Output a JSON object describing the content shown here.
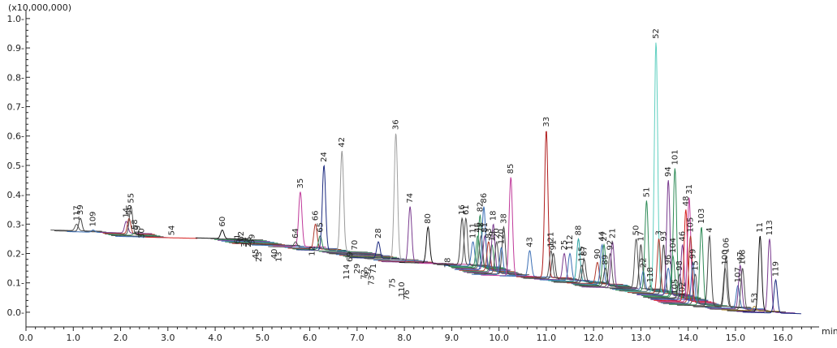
{
  "chart_data": {
    "type": "line",
    "title": "",
    "xlabel": "",
    "ylabel": "",
    "x_unit": "min",
    "y_multiplier": "(x10,000,000)",
    "xlim": [
      0.0,
      16.7
    ],
    "ylim": [
      -0.05,
      1.03
    ],
    "x_ticks": [
      0.0,
      1.0,
      2.0,
      3.0,
      4.0,
      5.0,
      6.0,
      7.0,
      8.0,
      9.0,
      10.0,
      11.0,
      12.0,
      13.0,
      14.0,
      15.0,
      16.0
    ],
    "x_tick_labels": [
      "0.0",
      "1.0",
      "2.0",
      "3.0",
      "4.0",
      "5.0",
      "6.0",
      "7.0",
      "8.0",
      "9.0",
      "10.0",
      "11.0",
      "12.0",
      "13.0",
      "14.0",
      "15.0",
      "16.0"
    ],
    "y_ticks": [
      0.0,
      0.1,
      0.2,
      0.3,
      0.4,
      0.5,
      0.6,
      0.7,
      0.8,
      0.9,
      1.0
    ],
    "y_tick_labels": [
      "0.0-",
      "0.1-",
      "0.2-",
      "0.3-",
      "0.4-",
      "0.5-",
      "0.6-",
      "0.7-",
      "0.8-",
      "0.9-",
      "1.0-"
    ],
    "grid": false,
    "legend": "none",
    "peaks": [
      {
        "label": "117",
        "x": 1.07,
        "y": 0.3,
        "color": "#555555"
      },
      {
        "label": "39",
        "x": 1.15,
        "y": 0.32,
        "color": "#444444"
      },
      {
        "label": "109",
        "x": 1.42,
        "y": 0.28,
        "color": "#3b6fb5"
      },
      {
        "label": "14",
        "x": 2.12,
        "y": 0.31,
        "color": "#7a3b8f"
      },
      {
        "label": "56",
        "x": 2.18,
        "y": 0.32,
        "color": "#b03a2e"
      },
      {
        "label": "55",
        "x": 2.22,
        "y": 0.36,
        "color": "#555555"
      },
      {
        "label": "58",
        "x": 2.3,
        "y": 0.27,
        "color": "#2e8b57"
      },
      {
        "label": "49",
        "x": 2.36,
        "y": 0.25,
        "color": "#444444"
      },
      {
        "label": "30",
        "x": 2.45,
        "y": 0.24,
        "color": "#3b6fb5"
      },
      {
        "label": "54",
        "x": 3.08,
        "y": 0.25,
        "color": "#d62020"
      },
      {
        "label": "60",
        "x": 4.15,
        "y": 0.28,
        "color": "#111111"
      },
      {
        "label": "61",
        "x": 4.47,
        "y": 0.22,
        "color": "#444444"
      },
      {
        "label": "62",
        "x": 4.55,
        "y": 0.23,
        "color": "#2e8b57"
      },
      {
        "label": "34",
        "x": 4.62,
        "y": 0.21,
        "color": "#7a3b8f"
      },
      {
        "label": "26",
        "x": 4.7,
        "y": 0.21,
        "color": "#3b6fb5"
      },
      {
        "label": "59",
        "x": 4.78,
        "y": 0.22,
        "color": "#2e8b57"
      },
      {
        "label": "45",
        "x": 4.86,
        "y": 0.17,
        "color": "#555555"
      },
      {
        "label": "23",
        "x": 4.93,
        "y": 0.16,
        "color": "#b03a2e"
      },
      {
        "label": "40",
        "x": 5.25,
        "y": 0.17,
        "color": "#444444"
      },
      {
        "label": "13",
        "x": 5.35,
        "y": 0.16,
        "color": "#3b6fb5"
      },
      {
        "label": "35",
        "x": 5.8,
        "y": 0.41,
        "color": "#c0399a"
      },
      {
        "label": "64",
        "x": 5.7,
        "y": 0.24,
        "color": "#555555"
      },
      {
        "label": "12",
        "x": 6.05,
        "y": 0.18,
        "color": "#3b6fb5"
      },
      {
        "label": "66",
        "x": 6.12,
        "y": 0.3,
        "color": "#b03a2e"
      },
      {
        "label": "65",
        "x": 6.22,
        "y": 0.26,
        "color": "#2e8b57"
      },
      {
        "label": "24",
        "x": 6.3,
        "y": 0.5,
        "color": "#1c2a80"
      },
      {
        "label": "42",
        "x": 6.68,
        "y": 0.55,
        "color": "#999999"
      },
      {
        "label": "114",
        "x": 6.78,
        "y": 0.1,
        "color": "#2e8b57"
      },
      {
        "label": "69",
        "x": 6.85,
        "y": 0.16,
        "color": "#7a3b8f"
      },
      {
        "label": "70",
        "x": 6.95,
        "y": 0.2,
        "color": "#555555"
      },
      {
        "label": "29",
        "x": 7.0,
        "y": 0.12,
        "color": "#444444"
      },
      {
        "label": "72",
        "x": 7.15,
        "y": 0.1,
        "color": "#3b6fb5"
      },
      {
        "label": "92",
        "x": 7.22,
        "y": 0.11,
        "color": "#b03a2e"
      },
      {
        "label": "73",
        "x": 7.3,
        "y": 0.08,
        "color": "#2e8b57"
      },
      {
        "label": "71",
        "x": 7.35,
        "y": 0.12,
        "color": "#444444"
      },
      {
        "label": "28",
        "x": 7.45,
        "y": 0.24,
        "color": "#1c2a80"
      },
      {
        "label": "75",
        "x": 7.75,
        "y": 0.07,
        "color": "#555555"
      },
      {
        "label": "36",
        "x": 7.82,
        "y": 0.61,
        "color": "#a0a0a0"
      },
      {
        "label": "110",
        "x": 7.95,
        "y": 0.04,
        "color": "#3b6fb5"
      },
      {
        "label": "76",
        "x": 8.05,
        "y": 0.03,
        "color": "#b03a2e"
      },
      {
        "label": "74",
        "x": 8.12,
        "y": 0.36,
        "color": "#7a3b8f"
      },
      {
        "label": "80",
        "x": 8.5,
        "y": 0.29,
        "color": "#111111"
      },
      {
        "label": "78",
        "x": 8.92,
        "y": 0.14,
        "color": "#c0399a"
      },
      {
        "label": "16",
        "x": 9.22,
        "y": 0.32,
        "color": "#444444"
      },
      {
        "label": "61",
        "x": 9.3,
        "y": 0.32,
        "color": "#555555"
      },
      {
        "label": "111",
        "x": 9.45,
        "y": 0.24,
        "color": "#3b6fb5"
      },
      {
        "label": "46",
        "x": 9.55,
        "y": 0.26,
        "color": "#2e8b57"
      },
      {
        "label": "82",
        "x": 9.6,
        "y": 0.33,
        "color": "#2e8b57"
      },
      {
        "label": "78",
        "x": 9.62,
        "y": 0.26,
        "color": "#555555"
      },
      {
        "label": "81",
        "x": 9.7,
        "y": 0.26,
        "color": "#7a3b8f"
      },
      {
        "label": "86",
        "x": 9.68,
        "y": 0.36,
        "color": "#3b6fb5"
      },
      {
        "label": "83",
        "x": 9.78,
        "y": 0.24,
        "color": "#b03a2e"
      },
      {
        "label": "19",
        "x": 9.85,
        "y": 0.23,
        "color": "#2e8b57"
      },
      {
        "label": "18",
        "x": 9.88,
        "y": 0.3,
        "color": "#7a3b8f"
      },
      {
        "label": "20",
        "x": 9.95,
        "y": 0.24,
        "color": "#555555"
      },
      {
        "label": "38",
        "x": 10.1,
        "y": 0.29,
        "color": "#444444"
      },
      {
        "label": "120",
        "x": 10.05,
        "y": 0.22,
        "color": "#3b6fb5"
      },
      {
        "label": "85",
        "x": 10.25,
        "y": 0.46,
        "color": "#c0399a"
      },
      {
        "label": "43",
        "x": 10.65,
        "y": 0.21,
        "color": "#3b6fb5"
      },
      {
        "label": "33",
        "x": 11.0,
        "y": 0.62,
        "color": "#b01c1c"
      },
      {
        "label": "121",
        "x": 11.1,
        "y": 0.21,
        "color": "#555555"
      },
      {
        "label": "91",
        "x": 11.15,
        "y": 0.2,
        "color": "#444444"
      },
      {
        "label": "25",
        "x": 11.38,
        "y": 0.2,
        "color": "#7a3b8f"
      },
      {
        "label": "112",
        "x": 11.5,
        "y": 0.2,
        "color": "#3b6fb5"
      },
      {
        "label": "88",
        "x": 11.68,
        "y": 0.25,
        "color": "#2ea3a3"
      },
      {
        "label": "115",
        "x": 11.75,
        "y": 0.16,
        "color": "#555555"
      },
      {
        "label": "87",
        "x": 11.8,
        "y": 0.18,
        "color": "#444444"
      },
      {
        "label": "90",
        "x": 12.08,
        "y": 0.17,
        "color": "#b03a2e"
      },
      {
        "label": "44",
        "x": 12.18,
        "y": 0.23,
        "color": "#3b6fb5"
      },
      {
        "label": "27",
        "x": 12.22,
        "y": 0.23,
        "color": "#2e8b57"
      },
      {
        "label": "89",
        "x": 12.25,
        "y": 0.15,
        "color": "#444444"
      },
      {
        "label": "92",
        "x": 12.35,
        "y": 0.2,
        "color": "#555555"
      },
      {
        "label": "21",
        "x": 12.4,
        "y": 0.24,
        "color": "#7a3b8f"
      },
      {
        "label": "50",
        "x": 12.9,
        "y": 0.25,
        "color": "#555555"
      },
      {
        "label": "17",
        "x": 13.0,
        "y": 0.23,
        "color": "#444444"
      },
      {
        "label": "22",
        "x": 13.05,
        "y": 0.14,
        "color": "#3b6fb5"
      },
      {
        "label": "51",
        "x": 13.12,
        "y": 0.38,
        "color": "#2e8b57"
      },
      {
        "label": "118",
        "x": 13.2,
        "y": 0.09,
        "color": "#555555"
      },
      {
        "label": "52",
        "x": 13.32,
        "y": 0.92,
        "color": "#5fcfc0"
      },
      {
        "label": "3",
        "x": 13.38,
        "y": 0.25,
        "color": "#b03a2e"
      },
      {
        "label": "93",
        "x": 13.48,
        "y": 0.23,
        "color": "#444444"
      },
      {
        "label": "96",
        "x": 13.58,
        "y": 0.15,
        "color": "#3b6fb5"
      },
      {
        "label": "94",
        "x": 13.58,
        "y": 0.45,
        "color": "#7a3b8f"
      },
      {
        "label": "104",
        "x": 13.68,
        "y": 0.19,
        "color": "#2e8b57"
      },
      {
        "label": "101",
        "x": 13.72,
        "y": 0.49,
        "color": "#2e8b57"
      },
      {
        "label": "105",
        "x": 13.72,
        "y": 0.05,
        "color": "#555555"
      },
      {
        "label": "98",
        "x": 13.82,
        "y": 0.13,
        "color": "#444444"
      },
      {
        "label": "102",
        "x": 13.88,
        "y": 0.04,
        "color": "#3b6fb5"
      },
      {
        "label": "46",
        "x": 13.88,
        "y": 0.23,
        "color": "#7a3b8f"
      },
      {
        "label": "48",
        "x": 13.95,
        "y": 0.35,
        "color": "#d62020"
      },
      {
        "label": "31",
        "x": 14.02,
        "y": 0.39,
        "color": "#c0399a"
      },
      {
        "label": "105",
        "x": 14.05,
        "y": 0.26,
        "color": "#b03a2e"
      },
      {
        "label": "99",
        "x": 14.1,
        "y": 0.17,
        "color": "#3b6fb5"
      },
      {
        "label": "15",
        "x": 14.15,
        "y": 0.13,
        "color": "#555555"
      },
      {
        "label": "103",
        "x": 14.28,
        "y": 0.29,
        "color": "#2e8b57"
      },
      {
        "label": "4",
        "x": 14.45,
        "y": 0.26,
        "color": "#444444"
      },
      {
        "label": "100",
        "x": 14.78,
        "y": 0.15,
        "color": "#555555"
      },
      {
        "label": "106",
        "x": 14.8,
        "y": 0.19,
        "color": "#444444"
      },
      {
        "label": "107",
        "x": 15.05,
        "y": 0.09,
        "color": "#3b6fb5"
      },
      {
        "label": "47",
        "x": 15.1,
        "y": 0.16,
        "color": "#7a3b8f"
      },
      {
        "label": "108",
        "x": 15.15,
        "y": 0.15,
        "color": "#555555"
      },
      {
        "label": "53",
        "x": 15.4,
        "y": 0.02,
        "color": "#b08a2e"
      },
      {
        "label": "11",
        "x": 15.52,
        "y": 0.26,
        "color": "#111111"
      },
      {
        "label": "113",
        "x": 15.72,
        "y": 0.25,
        "color": "#7a3b8f"
      },
      {
        "label": "119",
        "x": 15.85,
        "y": 0.11,
        "color": "#1c2a80"
      }
    ]
  }
}
